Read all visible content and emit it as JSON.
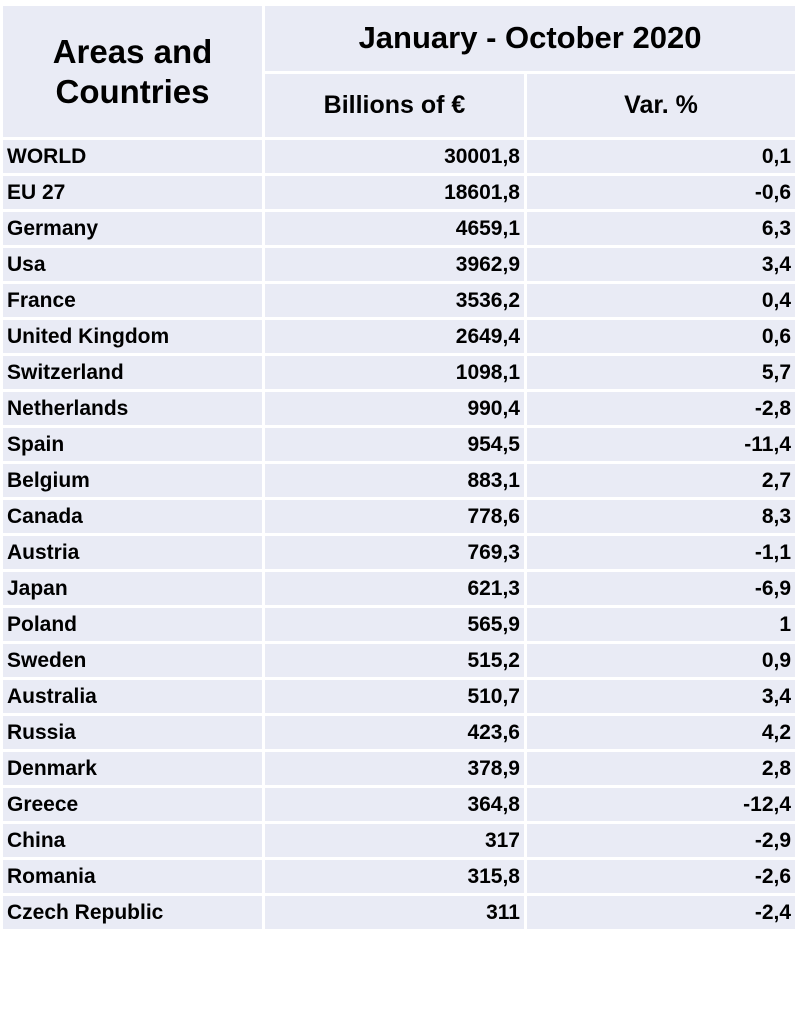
{
  "header": {
    "areas_label": "Areas and Countries",
    "period": "January - October 2020",
    "col_value": "Billions of €",
    "col_var": "Var. %"
  },
  "rows": [
    {
      "name": "WORLD",
      "value": "30001,8",
      "var": "0,1"
    },
    {
      "name": "EU 27",
      "value": "18601,8",
      "var": "-0,6"
    },
    {
      "name": "Germany",
      "value": "4659,1",
      "var": "6,3"
    },
    {
      "name": "Usa",
      "value": "3962,9",
      "var": "3,4"
    },
    {
      "name": "France",
      "value": "3536,2",
      "var": "0,4"
    },
    {
      "name": "United Kingdom",
      "value": "2649,4",
      "var": "0,6"
    },
    {
      "name": "Switzerland",
      "value": "1098,1",
      "var": "5,7"
    },
    {
      "name": "Netherlands",
      "value": "990,4",
      "var": "-2,8"
    },
    {
      "name": "Spain",
      "value": "954,5",
      "var": "-11,4"
    },
    {
      "name": "Belgium",
      "value": "883,1",
      "var": "2,7"
    },
    {
      "name": "Canada",
      "value": "778,6",
      "var": "8,3"
    },
    {
      "name": "Austria",
      "value": "769,3",
      "var": "-1,1"
    },
    {
      "name": "Japan",
      "value": "621,3",
      "var": "-6,9"
    },
    {
      "name": "Poland",
      "value": "565,9",
      "var": "1"
    },
    {
      "name": "Sweden",
      "value": "515,2",
      "var": "0,9"
    },
    {
      "name": "Australia",
      "value": "510,7",
      "var": "3,4"
    },
    {
      "name": "Russia",
      "value": "423,6",
      "var": "4,2"
    },
    {
      "name": "Denmark",
      "value": "378,9",
      "var": "2,8"
    },
    {
      "name": "Greece",
      "value": "364,8",
      "var": "-12,4"
    },
    {
      "name": "China",
      "value": "317",
      "var": "-2,9"
    },
    {
      "name": "Romania",
      "value": "315,8",
      "var": "-2,6"
    },
    {
      "name": "Czech Republic",
      "value": "311",
      "var": "-2,4"
    }
  ]
}
